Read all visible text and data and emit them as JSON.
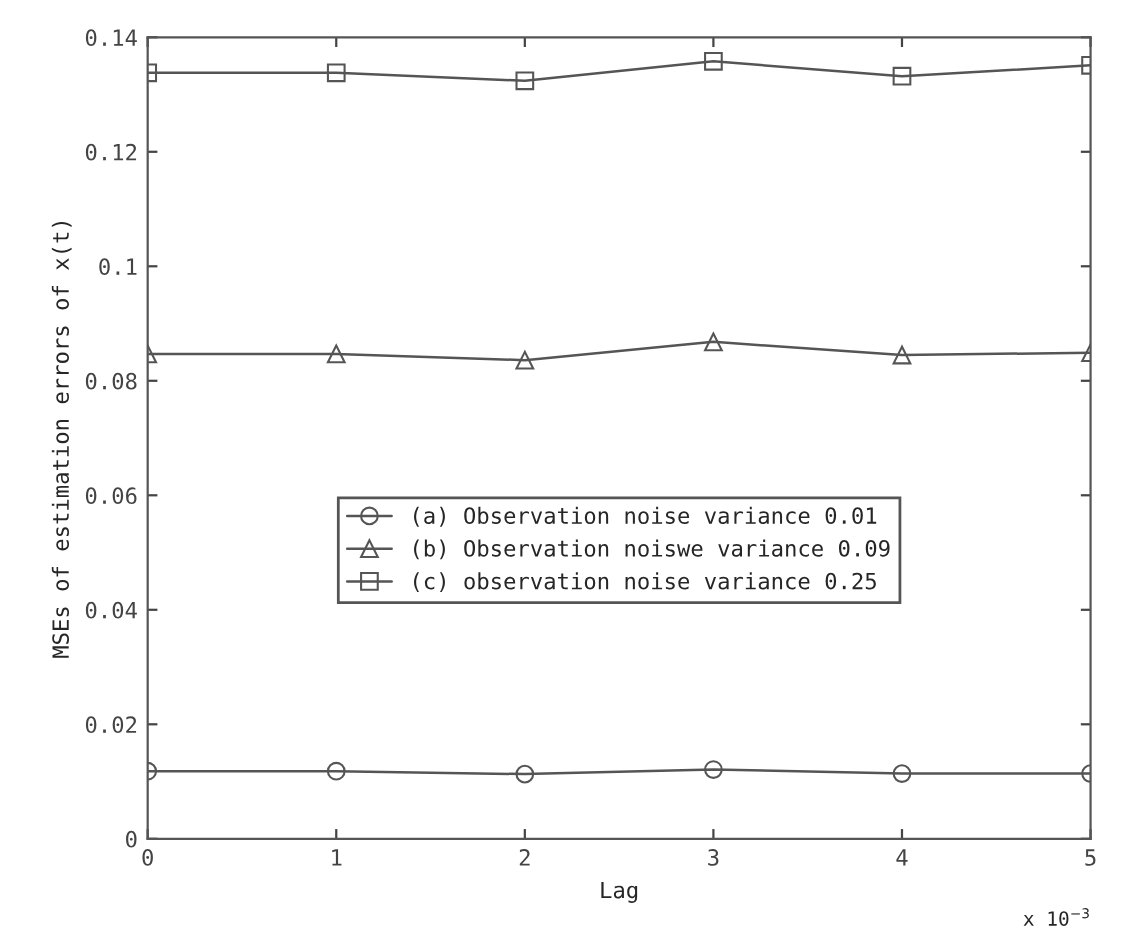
{
  "chart_data": {
    "type": "line",
    "xlabel": "Lag",
    "ylabel": "MSEs of estimation errors of x(t)",
    "x": [
      0,
      1,
      2,
      3,
      4,
      5
    ],
    "series": [
      {
        "name": "(a) Observation noise variance 0.01",
        "color": "#555555",
        "marker": "circle",
        "values": [
          0.0118,
          0.0118,
          0.0113,
          0.0121,
          0.0114,
          0.0114
        ]
      },
      {
        "name": "(b) Observation noiswe variance 0.09",
        "color": "#555555",
        "marker": "triangle",
        "values": [
          0.0847,
          0.0847,
          0.0836,
          0.0868,
          0.0845,
          0.0849
        ]
      },
      {
        "name": "(c) observation noise variance 0.25",
        "color": "#555555",
        "marker": "square",
        "values": [
          0.1338,
          0.1338,
          0.1324,
          0.1358,
          0.1332,
          0.1351
        ]
      }
    ],
    "xlim": [
      0,
      5
    ],
    "xticks": [
      0,
      1,
      2,
      3,
      4,
      5
    ],
    "ylim": [
      0,
      0.14
    ],
    "yticks": [
      {
        "value": 0,
        "label": "0"
      },
      0.02,
      0.04,
      0.06,
      0.08,
      {
        "value": 0.1,
        "label": "0.1"
      },
      0.12,
      0.14
    ],
    "annotations": [
      "x 10$^{−3}$"
    ],
    "grid": false,
    "legend": "center",
    "line_style": "solid"
  }
}
